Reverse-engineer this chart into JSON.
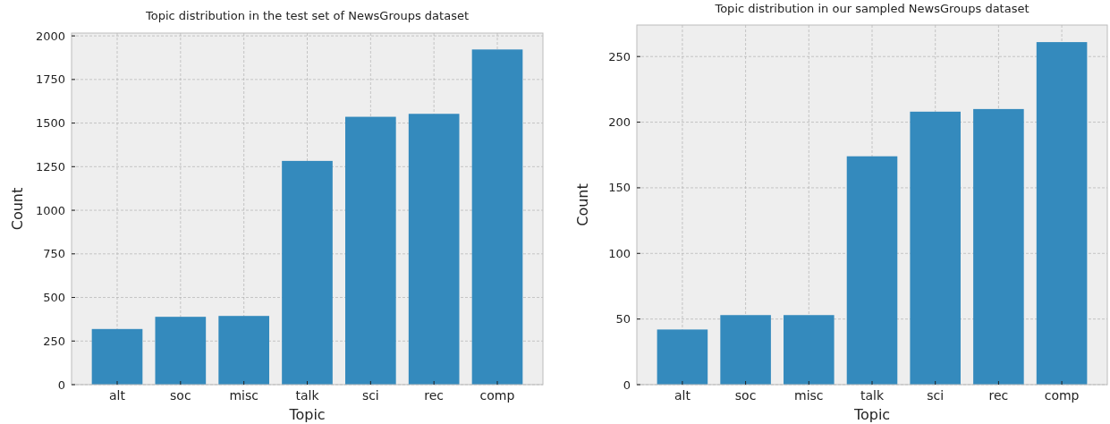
{
  "chart_data": [
    {
      "type": "bar",
      "title": "Topic distribution in the test set of NewsGroups dataset",
      "xlabel": "Topic",
      "ylabel": "Count",
      "categories": [
        "alt",
        "soc",
        "misc",
        "talk",
        "sci",
        "rec",
        "comp"
      ],
      "values": [
        319,
        389,
        394,
        1283,
        1536,
        1553,
        1922
      ],
      "color": "#348abd",
      "ylim": [
        0,
        2016
      ],
      "yticks": [
        0,
        250,
        500,
        750,
        1000,
        1250,
        1500,
        1750,
        2000
      ],
      "grid": true
    },
    {
      "type": "bar",
      "title": "Topic distribution in our sampled NewsGroups dataset",
      "xlabel": "Topic",
      "ylabel": "Count",
      "categories": [
        "alt",
        "soc",
        "misc",
        "talk",
        "sci",
        "rec",
        "comp"
      ],
      "values": [
        42,
        53,
        53,
        174,
        208,
        210,
        261
      ],
      "color": "#348abd",
      "ylim": [
        0,
        274
      ],
      "yticks": [
        0,
        50,
        100,
        150,
        200,
        250
      ],
      "grid": true
    }
  ]
}
